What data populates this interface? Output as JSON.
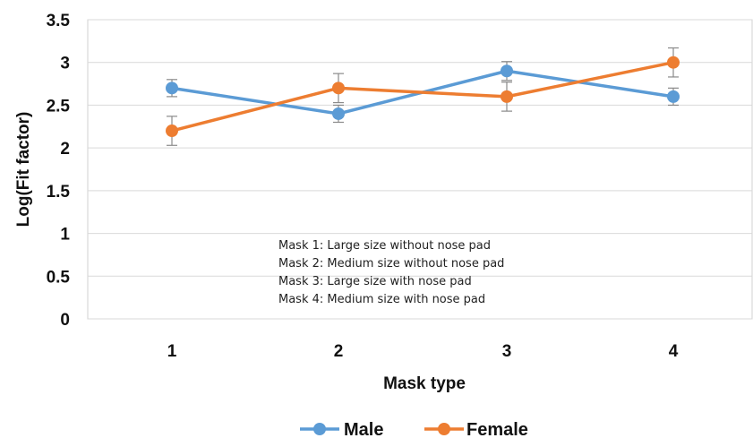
{
  "chart_data": {
    "type": "line",
    "categories": [
      "1",
      "2",
      "3",
      "4"
    ],
    "yticks": [
      "0",
      "0.5",
      "1",
      "1.5",
      "2",
      "2.5",
      "3",
      "3.5"
    ],
    "ylim": [
      0,
      3.5
    ],
    "xlabel": "Mask type",
    "ylabel": "Log(Fit factor)",
    "grid": "horizontal",
    "legend": "bottom",
    "series": [
      {
        "name": "Male",
        "color": "#5b9bd5",
        "values": [
          2.7,
          2.4,
          2.9,
          2.6
        ],
        "errors": [
          0.1,
          0.1,
          0.11,
          0.1
        ]
      },
      {
        "name": "Female",
        "color": "#ed7d31",
        "values": [
          2.2,
          2.7,
          2.6,
          3.0
        ],
        "errors": [
          0.17,
          0.17,
          0.17,
          0.17
        ]
      }
    ],
    "annotations": [
      "Mask  1: Large size without nose pad",
      "Mask  2: Medium size without nose pad",
      "Mask  3: Large size with nose pad",
      "Mask  4: Medium size with nose pad"
    ]
  }
}
